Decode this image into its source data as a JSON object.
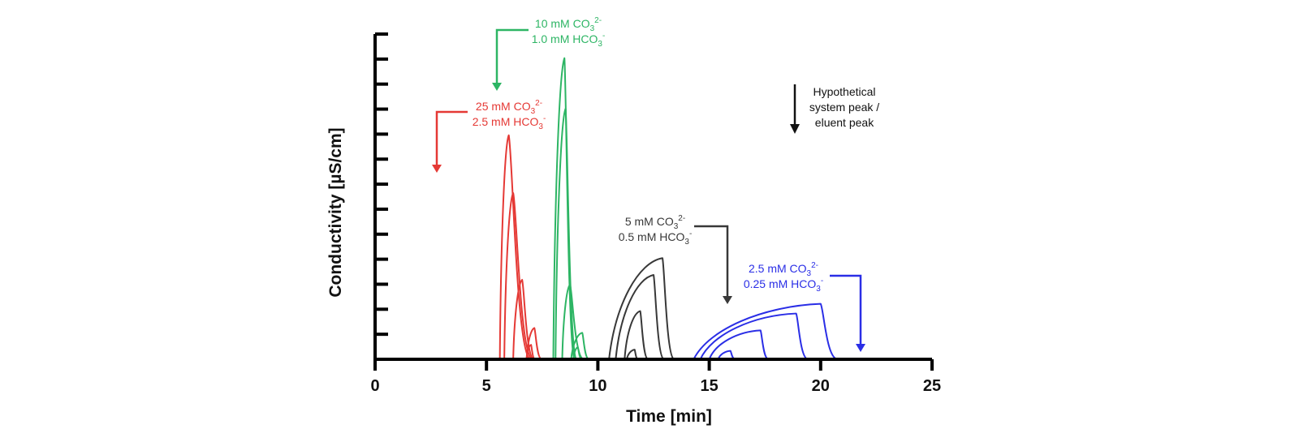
{
  "chart_data": {
    "type": "line",
    "title": "",
    "xlabel": "Time [min]",
    "ylabel": "Conductivity [µS/cm]",
    "xlim": [
      0,
      25
    ],
    "xticks": [
      "0",
      "5",
      "10",
      "15",
      "20",
      "25"
    ],
    "ylim": [
      0,
      13.5
    ],
    "y_tick_count": 14,
    "y_tick_labels_shown": false,
    "baseline": 0,
    "peak_shape_note": "fronting triangular peaks: gradual rise, steep drop",
    "groups": [
      {
        "color": "#e53935",
        "label_line1": "25 mM CO",
        "label_line1_sub": "3",
        "label_line1_sup": "2-",
        "label_line2": "2.5 mM HCO",
        "label_line2_sub": "3",
        "label_line2_sup": "-",
        "system_peak_time": 2.75,
        "peaks": [
          {
            "start": 5.6,
            "apex": 6.0,
            "height": 9.3,
            "end": 7.7
          },
          {
            "start": 5.8,
            "apex": 6.2,
            "height": 6.9,
            "end": 7.7
          },
          {
            "start": 6.2,
            "apex": 6.6,
            "height": 3.3,
            "end": 7.5
          },
          {
            "start": 6.8,
            "apex": 7.15,
            "height": 1.3,
            "end": 7.7
          },
          {
            "start": 6.8,
            "apex": 7.0,
            "height": 0.6,
            "end": 7.3
          }
        ]
      },
      {
        "color": "#2db564",
        "label_line1": "10 mM CO",
        "label_line1_sub": "3",
        "label_line1_sup": "2-",
        "label_line2": "1.0 mM HCO",
        "label_line2_sub": "3",
        "label_line2_sup": "-",
        "system_peak_time": 5.5,
        "peaks": [
          {
            "start": 8.0,
            "apex": 8.5,
            "height": 12.5,
            "end": 9.3
          },
          {
            "start": 8.1,
            "apex": 8.55,
            "height": 10.4,
            "end": 9.4
          },
          {
            "start": 8.4,
            "apex": 8.75,
            "height": 3.1,
            "end": 9.8
          },
          {
            "start": 8.8,
            "apex": 9.3,
            "height": 1.1,
            "end": 9.8
          },
          {
            "start": 8.9,
            "apex": 9.1,
            "height": 0.5,
            "end": 9.4
          }
        ]
      },
      {
        "color": "#383838",
        "label_line1": "5 mM CO",
        "label_line1_sub": "3",
        "label_line1_sup": "2-",
        "label_line2": "0.5 mM HCO",
        "label_line2_sub": "3",
        "label_line2_sup": "-",
        "system_peak_time": 15.8,
        "peaks": [
          {
            "start": 10.5,
            "apex": 12.9,
            "height": 4.2,
            "end": 13.8
          },
          {
            "start": 10.8,
            "apex": 12.5,
            "height": 3.5,
            "end": 13.3
          },
          {
            "start": 11.2,
            "apex": 11.9,
            "height": 2.0,
            "end": 12.5
          },
          {
            "start": 11.3,
            "apex": 11.65,
            "height": 0.4,
            "end": 11.9
          }
        ]
      },
      {
        "color": "#2a2ee6",
        "label_line1": "2.5 mM CO",
        "label_line1_sub": "3",
        "label_line1_sup": "2-",
        "label_line2": "0.25 mM HCO",
        "label_line2_sub": "3",
        "label_line2_sup": "-",
        "system_peak_time": 21.7,
        "peaks": [
          {
            "start": 14.3,
            "apex": 20.0,
            "height": 2.3,
            "end": 21.3
          },
          {
            "start": 14.6,
            "apex": 18.9,
            "height": 1.9,
            "end": 19.8
          },
          {
            "start": 15.0,
            "apex": 17.3,
            "height": 1.2,
            "end": 17.9
          },
          {
            "start": 15.4,
            "apex": 15.95,
            "height": 0.35,
            "end": 16.3
          }
        ]
      }
    ],
    "annotations": [
      {
        "text_lines": [
          "Hypothetical",
          "system peak /",
          "eluent peak"
        ],
        "color": "#111111"
      }
    ]
  }
}
